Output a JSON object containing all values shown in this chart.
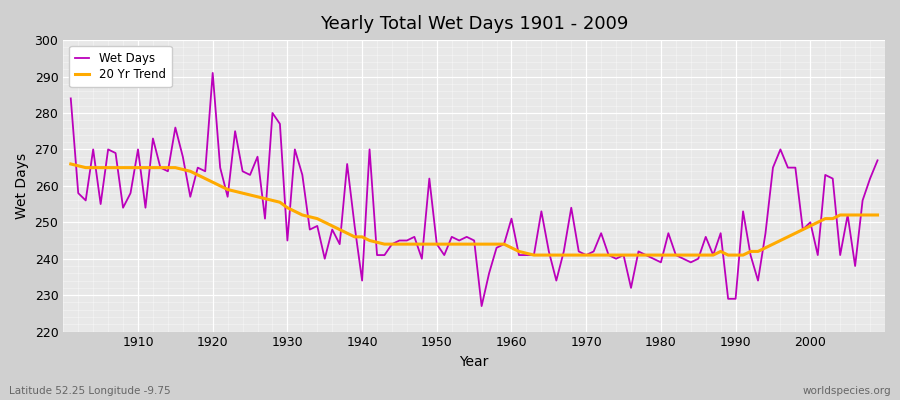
{
  "title": "Yearly Total Wet Days 1901 - 2009",
  "xlabel": "Year",
  "ylabel": "Wet Days",
  "subtitle_lat": "Latitude 52.25 Longitude -9.75",
  "watermark": "worldspecies.org",
  "ylim": [
    220,
    300
  ],
  "yticks": [
    220,
    230,
    240,
    250,
    260,
    270,
    280,
    290,
    300
  ],
  "line_color": "#bb00bb",
  "trend_color": "#ffaa00",
  "fig_bg": "#d0d0d0",
  "plot_bg": "#e8e8e8",
  "years": [
    1901,
    1902,
    1903,
    1904,
    1905,
    1906,
    1907,
    1908,
    1909,
    1910,
    1911,
    1912,
    1913,
    1914,
    1915,
    1916,
    1917,
    1918,
    1919,
    1920,
    1921,
    1922,
    1923,
    1924,
    1925,
    1926,
    1927,
    1928,
    1929,
    1930,
    1931,
    1932,
    1933,
    1934,
    1935,
    1936,
    1937,
    1938,
    1939,
    1940,
    1941,
    1942,
    1943,
    1944,
    1945,
    1946,
    1947,
    1948,
    1949,
    1950,
    1951,
    1952,
    1953,
    1954,
    1955,
    1956,
    1957,
    1958,
    1959,
    1960,
    1961,
    1962,
    1963,
    1964,
    1965,
    1966,
    1967,
    1968,
    1969,
    1970,
    1971,
    1972,
    1973,
    1974,
    1975,
    1976,
    1977,
    1978,
    1979,
    1980,
    1981,
    1982,
    1983,
    1984,
    1985,
    1986,
    1987,
    1988,
    1989,
    1990,
    1991,
    1992,
    1993,
    1994,
    1995,
    1996,
    1997,
    1998,
    1999,
    2000,
    2001,
    2002,
    2003,
    2004,
    2005,
    2006,
    2007,
    2008,
    2009
  ],
  "wet_days": [
    284,
    258,
    256,
    270,
    255,
    270,
    269,
    254,
    258,
    270,
    254,
    273,
    265,
    264,
    276,
    268,
    257,
    265,
    264,
    291,
    265,
    257,
    275,
    264,
    263,
    268,
    251,
    280,
    277,
    245,
    270,
    263,
    248,
    249,
    240,
    248,
    244,
    266,
    249,
    234,
    270,
    241,
    241,
    244,
    245,
    245,
    246,
    240,
    262,
    244,
    241,
    246,
    245,
    246,
    245,
    227,
    236,
    243,
    244,
    251,
    241,
    241,
    241,
    253,
    242,
    234,
    242,
    254,
    242,
    241,
    242,
    247,
    241,
    240,
    241,
    232,
    242,
    241,
    240,
    239,
    247,
    241,
    240,
    239,
    240,
    246,
    241,
    247,
    229,
    229,
    253,
    241,
    234,
    247,
    265,
    270,
    265,
    265,
    248,
    250,
    241,
    263,
    262,
    241,
    252,
    238,
    256,
    262,
    267
  ],
  "trend": [
    266,
    265.5,
    265,
    265,
    265,
    265,
    265,
    265,
    265,
    265,
    265,
    265,
    265,
    265,
    265,
    264.5,
    264,
    263,
    262,
    261,
    260,
    259,
    258.5,
    258,
    257.5,
    257,
    256.5,
    256,
    255.5,
    254,
    253,
    252,
    251.5,
    251,
    250,
    249,
    248,
    247,
    246,
    246,
    245,
    244.5,
    244,
    244,
    244,
    244,
    244,
    244,
    244,
    244,
    244,
    244,
    244,
    244,
    244,
    244,
    244,
    244,
    244,
    243,
    242,
    241.5,
    241,
    241,
    241,
    241,
    241,
    241,
    241,
    241,
    241,
    241,
    241,
    241,
    241,
    241,
    241,
    241,
    241,
    241,
    241,
    241,
    241,
    241,
    241,
    241,
    241,
    242,
    241,
    241,
    241,
    242,
    242,
    243,
    244,
    245,
    246,
    247,
    248,
    249,
    250,
    251,
    251,
    252,
    252,
    252,
    252,
    252,
    252
  ]
}
